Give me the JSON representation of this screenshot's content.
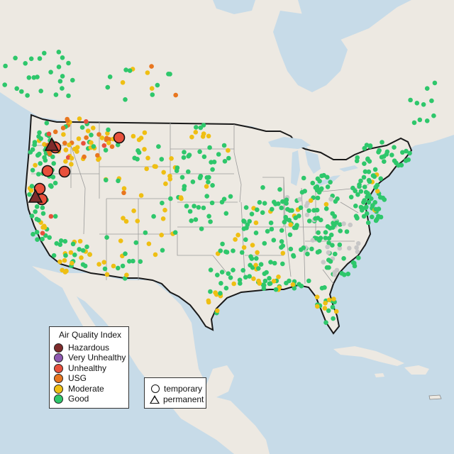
{
  "legend": {
    "title": "Air Quality Index",
    "categories": [
      {
        "label": "Hazardous",
        "color": "#7e2b2b"
      },
      {
        "label": "Very Unhealthy",
        "color": "#8e58b0"
      },
      {
        "label": "Unhealthy",
        "color": "#e8503c"
      },
      {
        "label": "USG",
        "color": "#e8761f"
      },
      {
        "label": "Moderate",
        "color": "#efbf13"
      },
      {
        "label": "Good",
        "color": "#2ec76b"
      }
    ]
  },
  "monitor_types": {
    "temporary": "temporary",
    "permanent": "permanent"
  },
  "colors": {
    "water": "#c7dbe8",
    "land": "#ede9e2",
    "border": "#1a1a1a",
    "state_line": "#9a9a9a",
    "gray_sensor": "#c7c7c7"
  }
}
